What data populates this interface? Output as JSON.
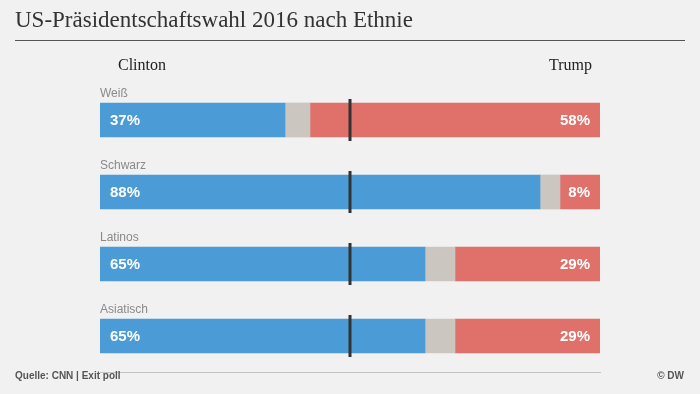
{
  "chart_data": {
    "type": "bar",
    "title": "US-Präsidentschaftswahl 2016 nach Ethnie",
    "orientation": "horizontal",
    "stacked": true,
    "data_labels": true,
    "tick_labels": false,
    "grid": true,
    "categories": [
      "Weiß",
      "Schwarz",
      "Latinos",
      "Asiatisch"
    ],
    "xlim": [
      0,
      100
    ],
    "xticks": [
      50
    ],
    "series": [
      {
        "name": "Clinton",
        "color": "#4b9cd6",
        "values": [
          37,
          88,
          65,
          65
        ],
        "value_labels": [
          "37%",
          "88%",
          "65%",
          "65%"
        ]
      },
      {
        "color": "#cbc6c0",
        "values": [
          5,
          4,
          6,
          6
        ]
      },
      {
        "name": "Trump",
        "color": "#e0706a",
        "values": [
          58,
          8,
          29,
          29
        ],
        "value_labels": [
          "58%",
          "8%",
          "29%",
          "29%"
        ]
      }
    ],
    "source": "Quelle: CNN | Exit poll",
    "credit": "© DW"
  }
}
